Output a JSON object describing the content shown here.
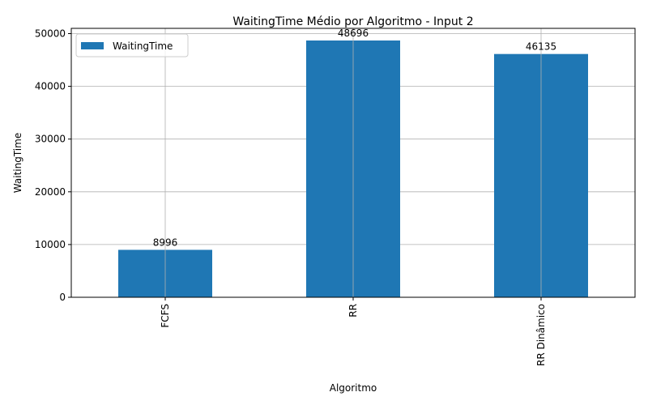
{
  "chart_data": {
    "type": "bar",
    "title": "WaitingTime Médio por Algoritmo - Input 2",
    "xlabel": "Algoritmo",
    "ylabel": "WaitingTime",
    "categories": [
      "FCFS",
      "RR",
      "RR Dinâmico"
    ],
    "series": [
      {
        "name": "WaitingTime",
        "values": [
          8996,
          48696,
          46135
        ],
        "color": "#1f77b4"
      }
    ],
    "data_labels": [
      "8996",
      "48696",
      "46135"
    ],
    "y_ticks": [
      0,
      10000,
      20000,
      30000,
      40000,
      50000
    ],
    "ylim": [
      0,
      51000
    ],
    "grid": true,
    "legend_position": "top-left"
  }
}
